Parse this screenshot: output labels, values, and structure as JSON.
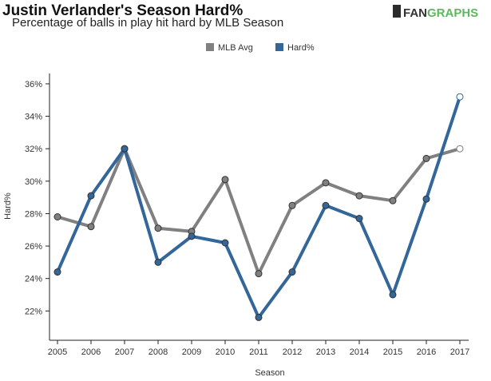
{
  "chart_data": {
    "type": "line",
    "title": "Justin Verlander's Season Hard%",
    "subtitle": "Percentage of balls in play hit hard by MLB Season",
    "logo": "FANGRAPHS",
    "xlabel": "Season",
    "ylabel": "Hard%",
    "ylim": [
      20.5,
      36.5
    ],
    "yticks": [
      22,
      24,
      26,
      28,
      30,
      32,
      34,
      36
    ],
    "ytick_labels": [
      "22%",
      "24%",
      "26%",
      "28%",
      "30%",
      "32%",
      "34%",
      "36%"
    ],
    "x": [
      "2005",
      "2006",
      "2007",
      "2008",
      "2009",
      "2010",
      "2011",
      "2012",
      "2013",
      "2014",
      "2015",
      "2016",
      "2017"
    ],
    "legend_position": "top-center",
    "grid": false,
    "series": [
      {
        "name": "MLB Avg",
        "color": "#808080",
        "values": [
          27.8,
          27.2,
          32.0,
          27.1,
          26.9,
          30.1,
          24.3,
          28.5,
          29.9,
          29.1,
          28.8,
          31.4,
          32.0
        ]
      },
      {
        "name": "Hard%",
        "color": "#336699",
        "values": [
          24.4,
          29.1,
          32.0,
          25.0,
          26.6,
          26.2,
          21.6,
          24.4,
          28.5,
          27.7,
          23.0,
          28.9,
          35.2
        ]
      }
    ]
  }
}
